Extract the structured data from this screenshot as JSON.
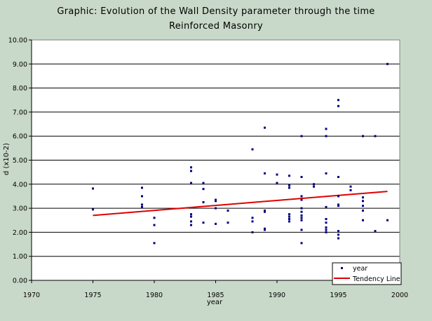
{
  "chart_data": {
    "type": "scatter",
    "title": "Graphic: Evolution of the Wall Density parameter through the time",
    "subtitle": "Reinforced Masonry",
    "xlabel": "year",
    "ylabel": "d (x10-2)",
    "xlim": [
      1970,
      2000
    ],
    "ylim": [
      0,
      10
    ],
    "x_ticks": [
      "1970",
      "1975",
      "1980",
      "1985",
      "1990",
      "1995",
      "2000"
    ],
    "y_ticks": [
      "0.00",
      "1.00",
      "2.00",
      "3.00",
      "4.00",
      "5.00",
      "6.00",
      "7.00",
      "8.00",
      "9.00",
      "10.00"
    ],
    "grid": true,
    "legend_position": "bottom-right",
    "series": [
      {
        "name": "year",
        "color": "#000080",
        "marker": "square",
        "points": [
          [
            1975,
            3.82
          ],
          [
            1975,
            2.95
          ],
          [
            1979,
            3.85
          ],
          [
            1979,
            3.5
          ],
          [
            1979,
            3.15
          ],
          [
            1979,
            3.05
          ],
          [
            1980,
            2.6
          ],
          [
            1980,
            2.3
          ],
          [
            1980,
            1.55
          ],
          [
            1983,
            4.7
          ],
          [
            1983,
            4.55
          ],
          [
            1983,
            4.05
          ],
          [
            1983,
            2.75
          ],
          [
            1983,
            2.65
          ],
          [
            1983,
            2.45
          ],
          [
            1983,
            2.3
          ],
          [
            1984,
            4.05
          ],
          [
            1984,
            3.8
          ],
          [
            1984,
            3.25
          ],
          [
            1984,
            2.4
          ],
          [
            1985,
            3.35
          ],
          [
            1985,
            3.3
          ],
          [
            1985,
            3.0
          ],
          [
            1985,
            2.35
          ],
          [
            1986,
            2.9
          ],
          [
            1986,
            2.4
          ],
          [
            1988,
            5.45
          ],
          [
            1988,
            2.6
          ],
          [
            1988,
            2.45
          ],
          [
            1988,
            2.0
          ],
          [
            1989,
            6.35
          ],
          [
            1989,
            4.45
          ],
          [
            1989,
            2.9
          ],
          [
            1989,
            2.85
          ],
          [
            1989,
            2.15
          ],
          [
            1989,
            2.1
          ],
          [
            1990,
            4.4
          ],
          [
            1990,
            4.05
          ],
          [
            1991,
            4.35
          ],
          [
            1991,
            3.95
          ],
          [
            1991,
            3.85
          ],
          [
            1991,
            2.75
          ],
          [
            1991,
            2.65
          ],
          [
            1991,
            2.55
          ],
          [
            1991,
            2.45
          ],
          [
            1992,
            6.0
          ],
          [
            1992,
            4.3
          ],
          [
            1992,
            3.5
          ],
          [
            1992,
            3.35
          ],
          [
            1992,
            3.0
          ],
          [
            1992,
            2.85
          ],
          [
            1992,
            2.7
          ],
          [
            1992,
            2.6
          ],
          [
            1992,
            2.5
          ],
          [
            1992,
            2.1
          ],
          [
            1992,
            1.55
          ],
          [
            1993,
            4.0
          ],
          [
            1993,
            3.9
          ],
          [
            1994,
            6.3
          ],
          [
            1994,
            6.0
          ],
          [
            1994,
            4.45
          ],
          [
            1994,
            3.05
          ],
          [
            1994,
            2.55
          ],
          [
            1994,
            2.4
          ],
          [
            1994,
            2.2
          ],
          [
            1994,
            2.1
          ],
          [
            1994,
            2.0
          ],
          [
            1995,
            7.5
          ],
          [
            1995,
            7.25
          ],
          [
            1995,
            4.3
          ],
          [
            1995,
            3.5
          ],
          [
            1995,
            3.15
          ],
          [
            1995,
            3.1
          ],
          [
            1995,
            2.05
          ],
          [
            1995,
            1.9
          ],
          [
            1995,
            1.75
          ],
          [
            1996,
            3.9
          ],
          [
            1996,
            3.75
          ],
          [
            1997,
            6.0
          ],
          [
            1997,
            3.45
          ],
          [
            1997,
            3.3
          ],
          [
            1997,
            3.1
          ],
          [
            1997,
            2.9
          ],
          [
            1997,
            2.5
          ],
          [
            1998,
            6.0
          ],
          [
            1998,
            2.05
          ],
          [
            1999,
            9.0
          ],
          [
            1999,
            2.5
          ]
        ]
      },
      {
        "name": "Tendency Line",
        "color": "#e00000",
        "type": "line",
        "points": [
          [
            1975,
            2.7
          ],
          [
            1999,
            3.7
          ]
        ]
      }
    ]
  }
}
